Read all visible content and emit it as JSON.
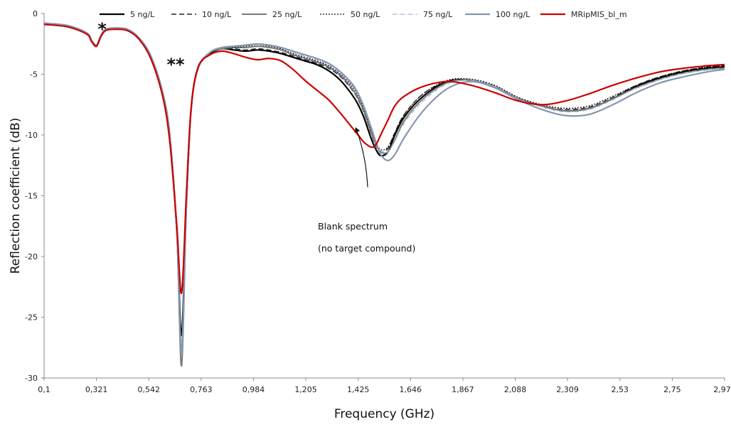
{
  "chart_data": {
    "type": "line",
    "title": "",
    "xlabel": "Frequency (GHz)",
    "ylabel": "Reflection coefficient (dB)",
    "xlim": [
      0.1,
      2.971
    ],
    "ylim": [
      -30,
      0
    ],
    "grid": false,
    "legend_position": "top",
    "x_ticks": [
      "0,1",
      "0,321",
      "0,542",
      "0,763",
      "0,984",
      "1,205",
      "1,425",
      "1,646",
      "1,867",
      "2,088",
      "2,309",
      "2,53",
      "2,75",
      "2,971"
    ],
    "y_ticks": [
      "0",
      "-5",
      "-10",
      "-15",
      "-20",
      "-25",
      "-30"
    ],
    "x": [
      0.1,
      0.2,
      0.28,
      0.3,
      0.321,
      0.34,
      0.36,
      0.4,
      0.45,
      0.5,
      0.55,
      0.6,
      0.63,
      0.66,
      0.68,
      0.7,
      0.72,
      0.75,
      0.8,
      0.85,
      0.9,
      0.95,
      1.0,
      1.05,
      1.1,
      1.15,
      1.2,
      1.25,
      1.3,
      1.35,
      1.4,
      1.425,
      1.45,
      1.48,
      1.5,
      1.52,
      1.55,
      1.58,
      1.62,
      1.7,
      1.8,
      1.9,
      2.0,
      2.1,
      2.2,
      2.3,
      2.4,
      2.5,
      2.6,
      2.7,
      2.8,
      2.9,
      2.971
    ],
    "series": [
      {
        "name": "5 ng/L",
        "color": "#000000",
        "dash": "solid",
        "width": 2.2,
        "values": [
          -0.8,
          -1.0,
          -1.6,
          -2.2,
          -2.6,
          -1.8,
          -1.3,
          -1.2,
          -1.3,
          -2.0,
          -3.5,
          -6.5,
          -10.0,
          -18.0,
          -26.5,
          -16.0,
          -8.0,
          -4.5,
          -3.3,
          -2.9,
          -3.0,
          -3.1,
          -3.0,
          -3.1,
          -3.3,
          -3.6,
          -3.9,
          -4.2,
          -4.7,
          -5.5,
          -6.7,
          -7.5,
          -8.6,
          -10.3,
          -11.2,
          -11.7,
          -11.4,
          -10.0,
          -8.5,
          -6.8,
          -5.6,
          -5.5,
          -6.0,
          -7.0,
          -7.6,
          -8.0,
          -7.8,
          -7.0,
          -6.0,
          -5.3,
          -4.8,
          -4.5,
          -4.4
        ]
      },
      {
        "name": "10 ng/L",
        "color": "#222222",
        "dash": "7,4",
        "width": 1.4,
        "values": [
          -0.8,
          -1.0,
          -1.6,
          -2.2,
          -2.6,
          -1.8,
          -1.3,
          -1.2,
          -1.3,
          -2.0,
          -3.5,
          -6.5,
          -10.0,
          -18.0,
          -27.5,
          -16.0,
          -8.0,
          -4.5,
          -3.3,
          -2.9,
          -2.9,
          -3.0,
          -2.9,
          -3.0,
          -3.2,
          -3.5,
          -3.8,
          -4.1,
          -4.5,
          -5.2,
          -6.3,
          -7.1,
          -8.2,
          -9.9,
          -10.9,
          -11.4,
          -11.1,
          -9.8,
          -8.3,
          -6.6,
          -5.6,
          -5.5,
          -6.0,
          -7.0,
          -7.6,
          -7.9,
          -7.7,
          -6.9,
          -5.9,
          -5.2,
          -4.7,
          -4.4,
          -4.3
        ]
      },
      {
        "name": "25 ng/L",
        "color": "#7a7a7a",
        "dash": "solid",
        "width": 2.0,
        "values": [
          -0.8,
          -1.0,
          -1.6,
          -2.2,
          -2.6,
          -1.8,
          -1.3,
          -1.2,
          -1.3,
          -2.0,
          -3.5,
          -6.5,
          -10.0,
          -18.0,
          -29.0,
          -16.0,
          -8.0,
          -4.5,
          -3.2,
          -2.9,
          -2.8,
          -2.8,
          -2.7,
          -2.8,
          -3.0,
          -3.4,
          -3.7,
          -4.0,
          -4.4,
          -5.1,
          -6.2,
          -7.0,
          -8.1,
          -9.8,
          -10.8,
          -11.4,
          -11.4,
          -10.4,
          -8.8,
          -7.0,
          -5.7,
          -5.5,
          -6.0,
          -7.0,
          -7.6,
          -8.0,
          -7.8,
          -7.0,
          -6.1,
          -5.4,
          -4.9,
          -4.6,
          -4.5
        ]
      },
      {
        "name": "50 ng/L",
        "color": "#111111",
        "dash": "2,2",
        "width": 1.3,
        "values": [
          -0.8,
          -1.0,
          -1.6,
          -2.2,
          -2.6,
          -1.8,
          -1.3,
          -1.2,
          -1.3,
          -2.0,
          -3.5,
          -6.5,
          -10.0,
          -18.0,
          -28.0,
          -16.0,
          -8.0,
          -4.5,
          -3.2,
          -2.8,
          -2.8,
          -2.7,
          -2.6,
          -2.7,
          -2.9,
          -3.3,
          -3.6,
          -3.9,
          -4.3,
          -5.0,
          -6.0,
          -6.8,
          -7.9,
          -9.6,
          -10.6,
          -11.2,
          -11.0,
          -9.8,
          -8.3,
          -6.6,
          -5.5,
          -5.4,
          -5.9,
          -6.9,
          -7.5,
          -7.8,
          -7.6,
          -6.8,
          -5.9,
          -5.2,
          -4.7,
          -4.4,
          -4.3
        ]
      },
      {
        "name": "75 ng/L",
        "color": "#9fb6d3",
        "dash": "6,2,1,2",
        "width": 1.3,
        "values": [
          -0.8,
          -1.0,
          -1.6,
          -2.2,
          -2.6,
          -1.8,
          -1.3,
          -1.2,
          -1.3,
          -2.0,
          -3.5,
          -6.5,
          -10.0,
          -18.0,
          -27.0,
          -16.0,
          -8.0,
          -4.5,
          -3.2,
          -2.8,
          -2.7,
          -2.6,
          -2.6,
          -2.6,
          -2.8,
          -3.2,
          -3.5,
          -3.8,
          -4.2,
          -4.9,
          -5.9,
          -6.7,
          -7.8,
          -9.5,
          -10.6,
          -11.3,
          -11.4,
          -10.5,
          -9.0,
          -7.2,
          -5.8,
          -5.5,
          -6.0,
          -7.0,
          -7.7,
          -8.1,
          -7.9,
          -7.1,
          -6.1,
          -5.4,
          -4.9,
          -4.6,
          -4.5
        ]
      },
      {
        "name": "100 ng/L",
        "color": "#8496b0",
        "dash": "solid",
        "width": 2.2,
        "values": [
          -0.8,
          -1.0,
          -1.6,
          -2.2,
          -2.6,
          -1.8,
          -1.3,
          -1.2,
          -1.3,
          -2.0,
          -3.5,
          -6.5,
          -10.0,
          -18.0,
          -28.0,
          -16.0,
          -8.0,
          -4.5,
          -3.2,
          -2.8,
          -2.7,
          -2.6,
          -2.5,
          -2.6,
          -2.8,
          -3.1,
          -3.4,
          -3.7,
          -4.1,
          -4.8,
          -5.8,
          -6.6,
          -7.7,
          -9.4,
          -10.6,
          -11.6,
          -12.1,
          -11.6,
          -10.2,
          -8.0,
          -6.2,
          -5.6,
          -6.1,
          -7.1,
          -7.9,
          -8.4,
          -8.3,
          -7.5,
          -6.5,
          -5.7,
          -5.2,
          -4.8,
          -4.6
        ]
      },
      {
        "name": "MRipMIS_bl_m",
        "color": "#cc0000",
        "dash": "solid",
        "width": 2.2,
        "values": [
          -0.9,
          -1.1,
          -1.7,
          -2.3,
          -2.7,
          -1.9,
          -1.4,
          -1.3,
          -1.4,
          -2.1,
          -3.7,
          -6.8,
          -10.5,
          -17.5,
          -23.0,
          -15.0,
          -7.8,
          -4.4,
          -3.4,
          -3.1,
          -3.3,
          -3.6,
          -3.8,
          -3.7,
          -3.9,
          -4.6,
          -5.5,
          -6.3,
          -7.1,
          -8.2,
          -9.4,
          -10.0,
          -10.6,
          -11.0,
          -10.8,
          -10.0,
          -8.8,
          -7.6,
          -6.8,
          -6.0,
          -5.6,
          -5.9,
          -6.5,
          -7.2,
          -7.5,
          -7.2,
          -6.6,
          -5.9,
          -5.3,
          -4.8,
          -4.5,
          -4.3,
          -4.2
        ]
      }
    ],
    "annotations": [
      {
        "text_lines": [
          "Blank spectrum",
          "(no target compound)"
        ],
        "arrow_from": [
          1.465,
          -14.3
        ],
        "arrow_to": [
          1.415,
          -9.3
        ]
      },
      {
        "text": "*",
        "x": 0.345,
        "y": -1.3
      },
      {
        "text": "**",
        "x": 0.655,
        "y": -4.2
      }
    ]
  }
}
